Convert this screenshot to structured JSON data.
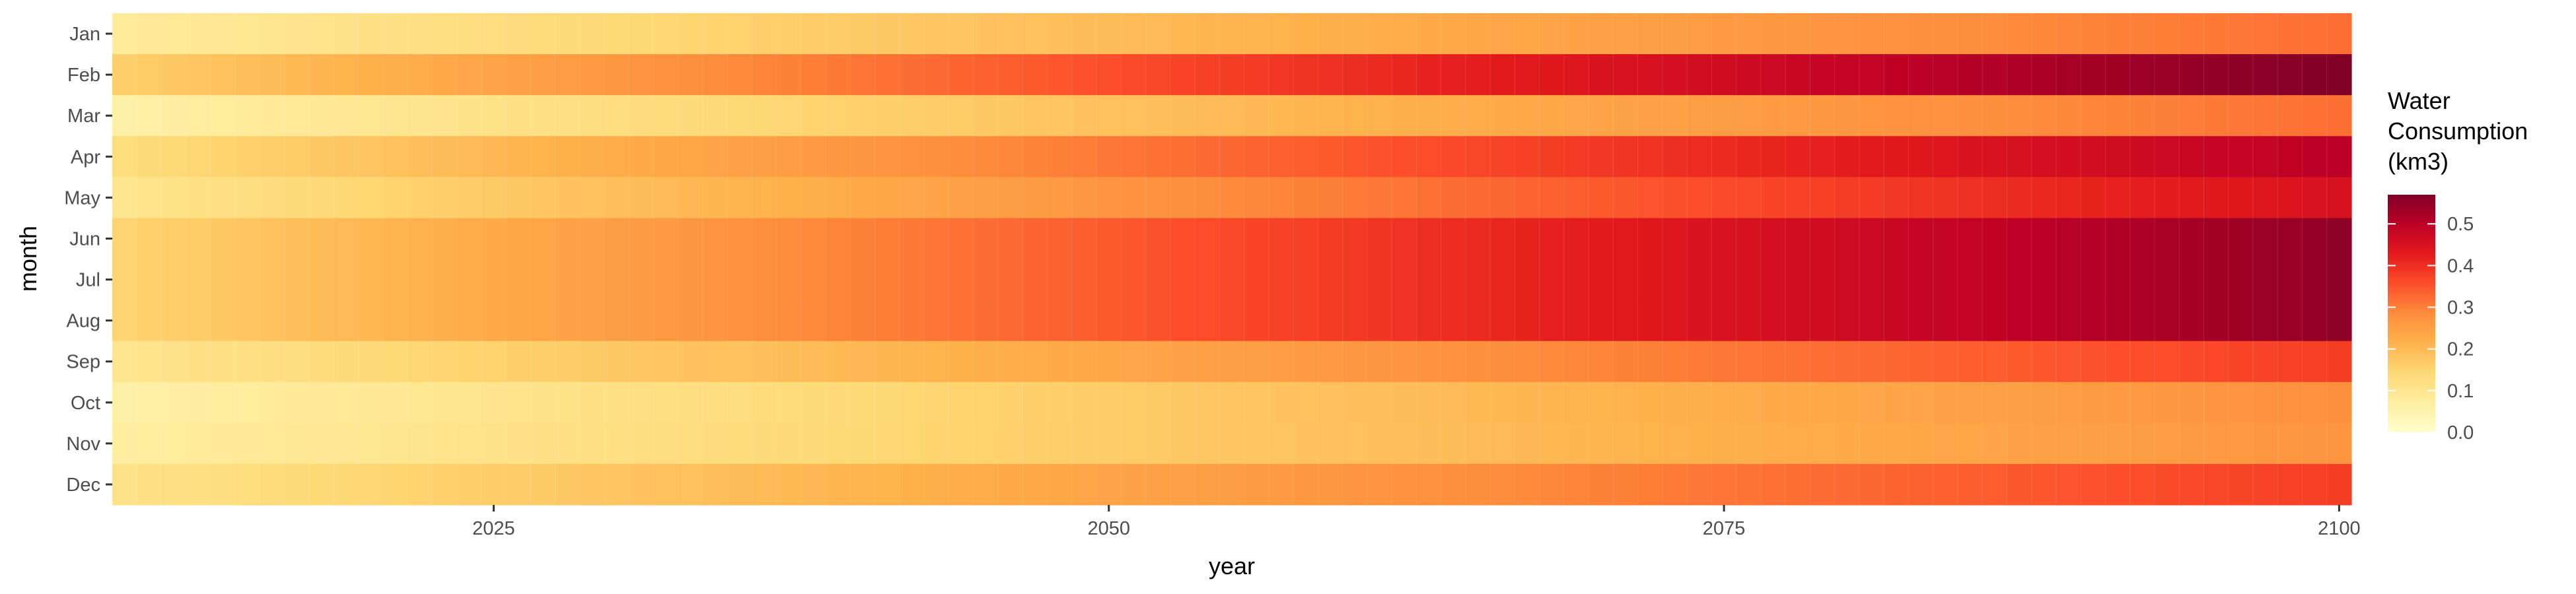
{
  "chart_data": {
    "type": "heatmap",
    "title": "",
    "xlabel": "year",
    "ylabel": "month",
    "x_start": 2010,
    "x_end": 2100,
    "x_ticks": [
      2025,
      2050,
      2075,
      2100
    ],
    "y_categories": [
      "Jan",
      "Feb",
      "Mar",
      "Apr",
      "May",
      "Jun",
      "Jul",
      "Aug",
      "Sep",
      "Oct",
      "Nov",
      "Dec"
    ],
    "colorbar": {
      "title_lines": [
        "Water",
        "Consumption",
        "(km3)"
      ],
      "ticks": [
        0.0,
        0.1,
        0.2,
        0.3,
        0.4,
        0.5
      ],
      "range": [
        0,
        0.57
      ],
      "colors": [
        "#ffffcc",
        "#ffeda0",
        "#fed976",
        "#feb24c",
        "#fd8d3c",
        "#fc4e2a",
        "#e31a1c",
        "#bd0026",
        "#800026"
      ]
    },
    "legend_position": "right",
    "grid": true,
    "monthly_values_2010": [
      0.08,
      0.16,
      0.06,
      0.13,
      0.1,
      0.15,
      0.15,
      0.15,
      0.1,
      0.06,
      0.07,
      0.11
    ],
    "monthly_values_2100": [
      0.32,
      0.57,
      0.32,
      0.5,
      0.45,
      0.55,
      0.55,
      0.55,
      0.38,
      0.28,
      0.27,
      0.38
    ]
  }
}
